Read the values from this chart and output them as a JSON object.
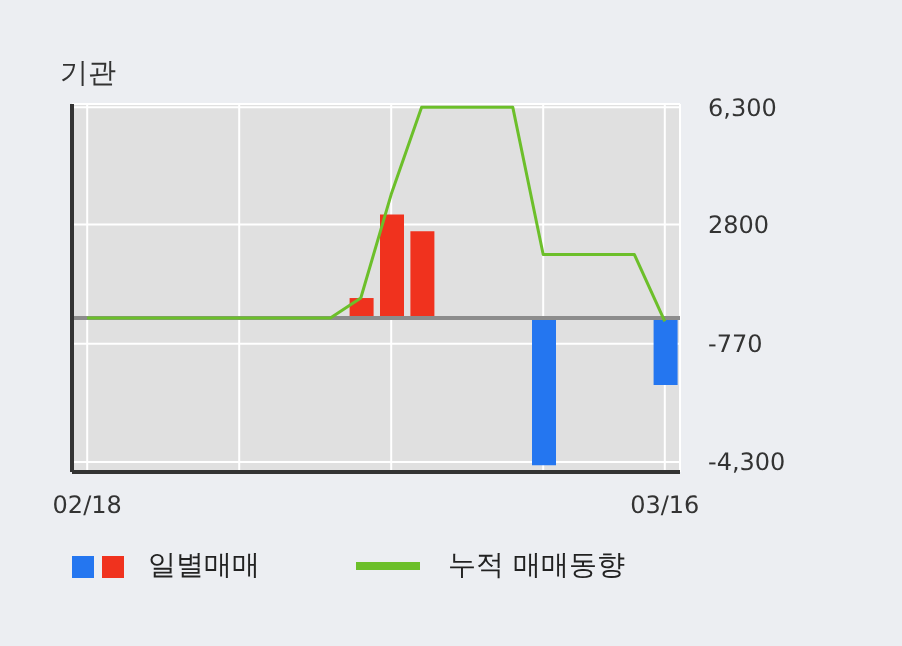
{
  "chart_data": {
    "type": "bar",
    "title": "기관",
    "categories": [
      "02/18",
      null,
      null,
      null,
      null,
      null,
      null,
      null,
      null,
      null,
      null,
      null,
      null,
      null,
      null,
      null,
      null,
      null,
      null,
      "03/16"
    ],
    "series": [
      {
        "name": "일별매매",
        "colors": [
          "#f0321e",
          "#f0321e",
          "#f0321e",
          "#f0321e",
          "#f0321e",
          "#f0321e",
          "#f0321e",
          "#f0321e",
          "#f0321e",
          "#f0321e",
          "#f0321e",
          "#f0321e",
          "#f0321e",
          "#f0321e",
          "#f0321e",
          "#2476f0",
          "#2476f0",
          "#2476f0",
          "#2476f0",
          "#2476f0"
        ],
        "values": [
          0,
          0,
          0,
          0,
          0,
          0,
          0,
          0,
          0,
          600,
          3100,
          2600,
          0,
          0,
          0,
          -4400,
          0,
          0,
          0,
          -2000
        ]
      },
      {
        "name": "누적 매매동향",
        "type": "line",
        "color": "#6cbf2a",
        "values": [
          0,
          0,
          0,
          0,
          0,
          0,
          0,
          0,
          0,
          600,
          3700,
          6300,
          6300,
          6300,
          6300,
          1900,
          1900,
          1900,
          1900,
          -100
        ]
      }
    ],
    "ylim": [
      -4600,
      6400
    ],
    "yticks": [
      {
        "value": 6300,
        "label": "6,300"
      },
      2800,
      -770,
      {
        "value": -4300,
        "label": "-4,300"
      }
    ],
    "ref_lines": [
      {
        "axis": "y",
        "value": 0,
        "color": "#8c8c8c"
      }
    ],
    "grid": true,
    "legend": "bottom",
    "marker": "none",
    "line_style": "solid"
  }
}
